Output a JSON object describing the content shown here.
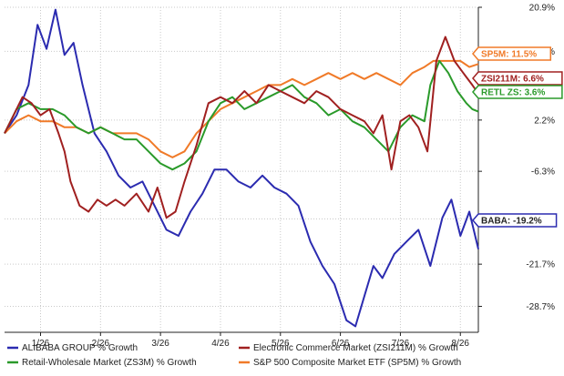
{
  "chart_data": {
    "type": "line",
    "title": "",
    "xlabel": "",
    "ylabel": "",
    "x_range": [
      0,
      7.9
    ],
    "ylim": [
      -33.0,
      20.9
    ],
    "grid": true,
    "legend_position": "bottom",
    "x_ticks": [
      {
        "label": "1/26",
        "x": 0.6
      },
      {
        "label": "2/26",
        "x": 1.6
      },
      {
        "label": "3/26",
        "x": 2.6
      },
      {
        "label": "4/26",
        "x": 3.6
      },
      {
        "label": "5/26",
        "x": 4.6
      },
      {
        "label": "6/26",
        "x": 5.6
      },
      {
        "label": "7/26",
        "x": 6.6
      },
      {
        "label": "8/26",
        "x": 7.6
      }
    ],
    "y_ticks": [
      {
        "label": "20.9%",
        "value": 20.9
      },
      {
        "label": "%",
        "value": 13.6
      },
      {
        "label": "2.2%",
        "value": 2.2
      },
      {
        "label": "-6.3%",
        "value": -6.3
      },
      {
        "label": "-14.2%",
        "value": -14.2
      },
      {
        "label": "-21.7%",
        "value": -21.7
      },
      {
        "label": "-28.7%",
        "value": -28.7
      }
    ],
    "series": [
      {
        "name": "ALIBABA GROUP % Growth",
        "flag": "BABA: -19.2%",
        "color": "#2b2bb0",
        "x": [
          0,
          0.2,
          0.4,
          0.55,
          0.7,
          0.85,
          1.0,
          1.15,
          1.3,
          1.5,
          1.7,
          1.9,
          2.1,
          2.3,
          2.5,
          2.7,
          2.9,
          3.1,
          3.3,
          3.5,
          3.7,
          3.9,
          4.1,
          4.3,
          4.5,
          4.7,
          4.9,
          5.1,
          5.3,
          5.5,
          5.7,
          5.85,
          6.0,
          6.15,
          6.3,
          6.5,
          6.7,
          6.9,
          7.1,
          7.3,
          7.45,
          7.6,
          7.75,
          7.9
        ],
        "values": [
          0,
          3,
          8,
          18,
          14,
          20.5,
          13,
          15,
          8,
          0,
          -3,
          -7,
          -9,
          -8,
          -12,
          -16,
          -17,
          -13,
          -10,
          -6,
          -6,
          -8,
          -9,
          -7,
          -9,
          -10,
          -12,
          -18,
          -22,
          -25,
          -31,
          -32,
          -27,
          -22,
          -24,
          -20,
          -18,
          -16,
          -22,
          -14,
          -11,
          -17,
          -13,
          -19.2
        ]
      },
      {
        "name": "Electronic Commerce Market (ZSI211M) % Growth",
        "flag": "ZSI211M: 6.6%",
        "color": "#a02020",
        "x": [
          0,
          0.15,
          0.3,
          0.45,
          0.6,
          0.75,
          0.9,
          1.0,
          1.1,
          1.25,
          1.4,
          1.55,
          1.7,
          1.85,
          2.0,
          2.2,
          2.4,
          2.55,
          2.7,
          2.85,
          3.0,
          3.2,
          3.4,
          3.6,
          3.8,
          4.0,
          4.2,
          4.4,
          4.6,
          4.8,
          5.0,
          5.2,
          5.4,
          5.6,
          5.8,
          6.0,
          6.15,
          6.3,
          6.45,
          6.6,
          6.75,
          6.9,
          7.05,
          7.2,
          7.35,
          7.5,
          7.65,
          7.8,
          7.9
        ],
        "values": [
          0,
          3,
          6,
          5,
          3,
          4,
          0,
          -3,
          -8,
          -12,
          -13,
          -11,
          -12,
          -11,
          -12,
          -10,
          -13,
          -9,
          -14,
          -13,
          -8,
          -2,
          5,
          6,
          5,
          7,
          5,
          8,
          7,
          6,
          5,
          7,
          6,
          4,
          3,
          2,
          0,
          3,
          -6,
          2,
          3,
          1,
          -3,
          12,
          16,
          12,
          10,
          8,
          6.6
        ]
      },
      {
        "name": "Retail-Wholesale Market (ZS3M) % Growth",
        "flag": "RETL ZS: 3.6%",
        "color": "#2a9a2a",
        "x": [
          0,
          0.2,
          0.4,
          0.6,
          0.8,
          1.0,
          1.2,
          1.4,
          1.6,
          1.8,
          2.0,
          2.2,
          2.4,
          2.6,
          2.8,
          3.0,
          3.2,
          3.4,
          3.6,
          3.8,
          4.0,
          4.2,
          4.4,
          4.6,
          4.8,
          5.0,
          5.2,
          5.4,
          5.6,
          5.8,
          6.0,
          6.2,
          6.4,
          6.6,
          6.8,
          7.0,
          7.1,
          7.25,
          7.4,
          7.55,
          7.7,
          7.8,
          7.9
        ],
        "values": [
          0,
          4,
          5,
          4,
          4,
          3,
          1,
          0,
          1,
          0,
          -1,
          -1,
          -3,
          -5,
          -6,
          -5,
          -3,
          2,
          5,
          6,
          4,
          5,
          6,
          7,
          8,
          6,
          5,
          3,
          4,
          2,
          1,
          -1,
          -3,
          1,
          3,
          2,
          8,
          12,
          10,
          7,
          5,
          4,
          3.6
        ]
      },
      {
        "name": "S&P 500 Composite Market ETF (SP5M) % Growth",
        "flag": "SP5M: 11.5%",
        "color": "#f07a28",
        "x": [
          0,
          0.2,
          0.4,
          0.6,
          0.8,
          1.0,
          1.2,
          1.4,
          1.6,
          1.8,
          2.0,
          2.2,
          2.4,
          2.6,
          2.8,
          3.0,
          3.2,
          3.4,
          3.6,
          3.8,
          4.0,
          4.2,
          4.4,
          4.6,
          4.8,
          5.0,
          5.2,
          5.4,
          5.6,
          5.8,
          6.0,
          6.2,
          6.4,
          6.6,
          6.8,
          7.0,
          7.15,
          7.3,
          7.45,
          7.6,
          7.75,
          7.9
        ],
        "values": [
          0,
          2,
          3,
          2,
          2,
          1,
          1,
          0,
          1,
          0,
          0,
          0,
          -1,
          -3,
          -4,
          -3,
          0,
          2,
          4,
          5,
          6,
          7,
          8,
          8,
          9,
          8,
          9,
          10,
          9,
          10,
          9,
          10,
          9,
          8,
          10,
          11,
          12,
          12,
          12,
          12,
          11,
          11.5
        ]
      }
    ],
    "colors": {
      "grid": "#c9c9c9",
      "axis": "#222222",
      "baba_flag_bg": "#ffffff",
      "baba_flag_border": "#2b2bb0"
    }
  }
}
